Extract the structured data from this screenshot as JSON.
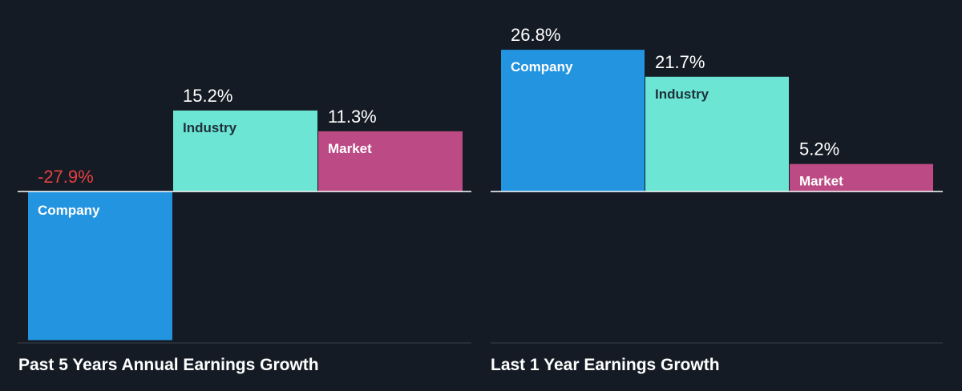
{
  "colors": {
    "background": "#151b24",
    "company": "#2394df",
    "industry": "#6ce5d4",
    "market": "#bc4a85",
    "negative_label": "#e64141",
    "axis_line": "#ffffff",
    "baseline": "#3a414c"
  },
  "chart_data": [
    {
      "type": "bar",
      "title": "Past 5 Years Annual Earnings Growth",
      "categories": [
        "Company",
        "Industry",
        "Market"
      ],
      "values": [
        -27.9,
        15.2,
        11.3
      ],
      "value_labels": [
        "-27.9%",
        "15.2%",
        "11.3%"
      ],
      "unit": "%",
      "grid": false,
      "legend": "none"
    },
    {
      "type": "bar",
      "title": "Last 1 Year Earnings Growth",
      "categories": [
        "Company",
        "Industry",
        "Market"
      ],
      "values": [
        26.8,
        21.7,
        5.2
      ],
      "value_labels": [
        "26.8%",
        "21.7%",
        "5.2%"
      ],
      "unit": "%",
      "grid": false,
      "legend": "none"
    }
  ]
}
